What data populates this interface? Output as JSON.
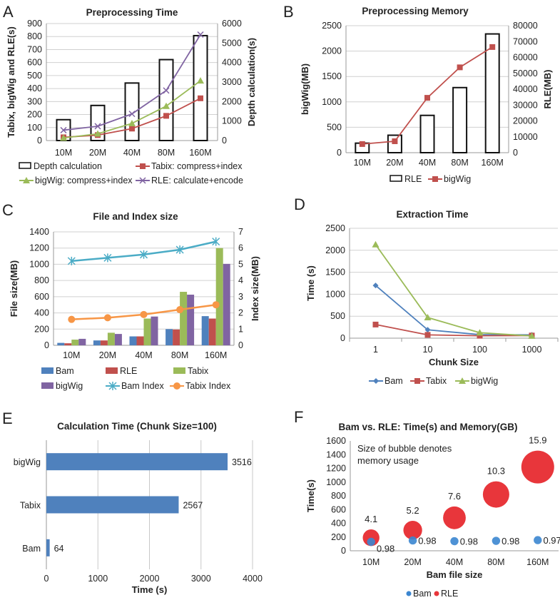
{
  "chart_data": [
    {
      "panel_label": "A",
      "type": "bar+line",
      "title": "Preprocessing Time",
      "categories": [
        "10M",
        "20M",
        "40M",
        "80M",
        "160M"
      ],
      "ylabel": "Tabix, bigWig and RLE(s)",
      "y2label": "Depth calculation(s)",
      "ylim": [
        0,
        900
      ],
      "yticks": [
        0,
        100,
        200,
        300,
        400,
        500,
        600,
        700,
        800,
        900
      ],
      "y2lim": [
        0,
        6000
      ],
      "y2ticks": [
        0,
        1000,
        2000,
        3000,
        4000,
        5000,
        6000
      ],
      "grid": true,
      "legend": "bottom",
      "series": [
        {
          "name": "Depth calculation",
          "kind": "bar",
          "axis": "right",
          "color": "#ffffff",
          "values": [
            1070,
            1800,
            2950,
            4150,
            5380
          ]
        },
        {
          "name": "Tabix: compress+index",
          "kind": "line",
          "marker": "square",
          "color": "#c0504d",
          "values": [
            25,
            42,
            92,
            190,
            325
          ]
        },
        {
          "name": "bigWig: compress+index",
          "kind": "line",
          "marker": "triangle",
          "color": "#9bbb59",
          "values": [
            20,
            52,
            132,
            265,
            460
          ]
        },
        {
          "name": "RLE: calculate+encode",
          "kind": "line",
          "marker": "x",
          "color": "#8064a2",
          "values": [
            80,
            110,
            205,
            385,
            815
          ]
        }
      ]
    },
    {
      "panel_label": "B",
      "type": "bar+line",
      "title": "Preprocessing Memory",
      "categories": [
        "10M",
        "20M",
        "40M",
        "80M",
        "160M"
      ],
      "ylabel": "bigWig(MB)",
      "y2label": "RLE(MB)",
      "ylim": [
        0,
        2500
      ],
      "yticks": [
        0,
        500,
        1000,
        1500,
        2000,
        2500
      ],
      "y2lim": [
        0,
        80000
      ],
      "y2ticks": [
        0,
        10000,
        20000,
        30000,
        40000,
        50000,
        60000,
        70000,
        80000
      ],
      "grid": true,
      "legend": "bottom",
      "series": [
        {
          "name": "RLE",
          "kind": "bar",
          "axis": "right",
          "color": "#ffffff",
          "values": [
            6000,
            11000,
            23500,
            41000,
            74800
          ]
        },
        {
          "name": "bigWig",
          "kind": "line",
          "marker": "square",
          "color": "#c0504d",
          "values": [
            170,
            225,
            1080,
            1680,
            2080
          ]
        }
      ]
    },
    {
      "panel_label": "C",
      "type": "bar+line",
      "title": "File and Index size",
      "categories": [
        "10M",
        "20M",
        "40M",
        "80M",
        "160M"
      ],
      "ylabel": "File size(MB)",
      "y2label": "Index size(MB)",
      "ylim": [
        0,
        1400
      ],
      "yticks": [
        0,
        200,
        400,
        600,
        800,
        1000,
        1200,
        1400
      ],
      "y2lim": [
        0,
        7
      ],
      "y2ticks": [
        0,
        1,
        2,
        3,
        4,
        5,
        6,
        7
      ],
      "grid": true,
      "legend": "bottom",
      "series": [
        {
          "name": "Bam",
          "kind": "bar",
          "axis": "left",
          "color": "#4f81bd",
          "values": [
            30,
            60,
            110,
            200,
            360
          ]
        },
        {
          "name": "RLE",
          "kind": "bar",
          "axis": "left",
          "color": "#c0504d",
          "values": [
            25,
            60,
            110,
            195,
            330
          ]
        },
        {
          "name": "Tabix",
          "kind": "bar",
          "axis": "left",
          "color": "#9bbb59",
          "values": [
            70,
            155,
            330,
            660,
            1200
          ]
        },
        {
          "name": "bigWig",
          "kind": "bar",
          "axis": "left",
          "color": "#8064a2",
          "values": [
            80,
            140,
            355,
            625,
            1005
          ]
        },
        {
          "name": "Bam Index",
          "kind": "line",
          "axis": "right",
          "marker": "asterisk",
          "color": "#4bacc6",
          "values": [
            5.2,
            5.4,
            5.6,
            5.9,
            6.4
          ]
        },
        {
          "name": "Tabix Index",
          "kind": "line",
          "axis": "right",
          "marker": "circle",
          "color": "#f79646",
          "values": [
            1.6,
            1.7,
            1.9,
            2.2,
            2.5
          ]
        }
      ]
    },
    {
      "panel_label": "D",
      "type": "line",
      "title": "Extraction Time",
      "categories": [
        "1",
        "10",
        "100",
        "1000"
      ],
      "xlabel": "Chunk Size",
      "ylabel": "Time (s)",
      "ylim": [
        0,
        2500
      ],
      "yticks": [
        0,
        500,
        1000,
        1500,
        2000,
        2500
      ],
      "grid": true,
      "legend": "bottom",
      "series": [
        {
          "name": "Bam",
          "kind": "line",
          "marker": "diamond",
          "color": "#4f81bd",
          "values": [
            1200,
            190,
            80,
            75
          ]
        },
        {
          "name": "Tabix",
          "kind": "line",
          "marker": "square",
          "color": "#c0504d",
          "values": [
            310,
            75,
            55,
            60
          ]
        },
        {
          "name": "bigWig",
          "kind": "line",
          "marker": "triangle",
          "color": "#9bbb59",
          "values": [
            2130,
            470,
            125,
            50
          ]
        }
      ]
    },
    {
      "panel_label": "E",
      "type": "bar",
      "orientation": "horizontal",
      "title": "Calculation Time (Chunk Size=100)",
      "categories": [
        "Bam",
        "Tabix",
        "bigWig"
      ],
      "values": [
        64,
        2567,
        3516
      ],
      "data_labels": [
        "64",
        "2567",
        "3516"
      ],
      "xlabel": "Time (s)",
      "xlim": [
        0,
        4000
      ],
      "xticks": [
        0,
        1000,
        2000,
        3000,
        4000
      ],
      "grid": true,
      "color": "#4f81bd"
    },
    {
      "panel_label": "F",
      "type": "bubble",
      "title": "Bam vs. RLE: Time(s) and Memory(GB)",
      "annotation": [
        "Size of bubble denotes",
        "memory usage"
      ],
      "categories": [
        "10M",
        "20M",
        "40M",
        "80M",
        "160M"
      ],
      "xlabel": "Bam file size",
      "ylabel": "Time(s)",
      "ylim": [
        0,
        1600
      ],
      "yticks": [
        0,
        200,
        400,
        600,
        800,
        1000,
        1200,
        1400,
        1600
      ],
      "grid": false,
      "legend": "bottom",
      "series": [
        {
          "name": "RLE",
          "color": "#e8363b",
          "values": [
            190,
            300,
            480,
            820,
            1220
          ],
          "sizes": [
            4.1,
            5.2,
            7.6,
            10.3,
            15.9
          ],
          "labels": [
            "4.1",
            "5.2",
            "7.6",
            "10.3",
            "15.9"
          ]
        },
        {
          "name": "Bam",
          "color": "#3b86d0",
          "values": [
            130,
            150,
            140,
            145,
            155
          ],
          "sizes": [
            0.98,
            0.98,
            0.98,
            0.98,
            0.97
          ],
          "labels": [
            "0.98",
            "0.98",
            "0.98",
            "0.98",
            "0.97"
          ]
        }
      ]
    }
  ]
}
